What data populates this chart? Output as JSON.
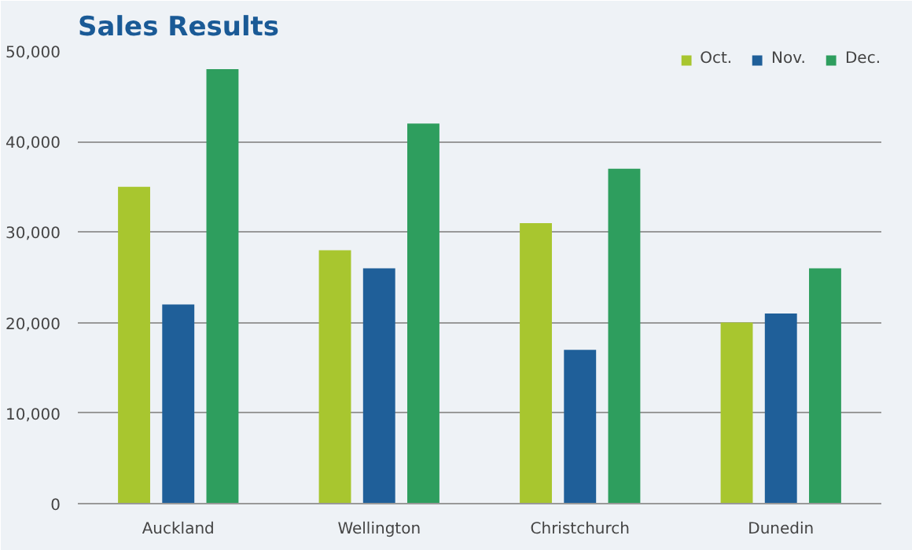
{
  "chart_data": {
    "type": "bar",
    "title": "Sales Results",
    "categories": [
      "Auckland",
      "Wellington",
      "Christchurch",
      "Dunedin"
    ],
    "series": [
      {
        "name": "Oct.",
        "color": "#a8c62f",
        "values": [
          35000,
          28000,
          31000,
          20000
        ]
      },
      {
        "name": "Nov.",
        "color": "#1f5f99",
        "values": [
          22000,
          26000,
          17000,
          21000
        ]
      },
      {
        "name": "Dec.",
        "color": "#2e9e5e",
        "values": [
          48000,
          42000,
          37000,
          26000
        ]
      }
    ],
    "ylim": [
      0,
      50000
    ],
    "yticks": [
      0,
      {
        "value": 10000,
        "label": "10,000"
      },
      {
        "value": 20000,
        "label": "20,000"
      },
      {
        "value": 30000,
        "label": "30,000"
      },
      {
        "value": 40000,
        "label": "40,000"
      },
      {
        "value": 50000,
        "label": "50,000"
      }
    ],
    "grid": "y",
    "legend": "top right"
  }
}
